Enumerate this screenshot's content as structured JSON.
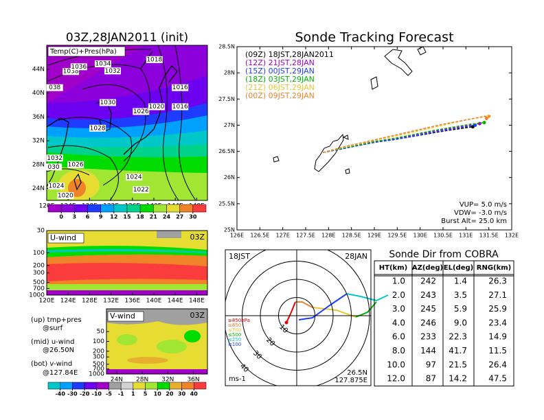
{
  "chart_data": [
    {
      "type": "contour",
      "title": "03Z,28JAN2011 (init)",
      "label": "Temp(C)+Pres(hPa)",
      "xlim": [
        120,
        150
      ],
      "ylim": [
        22,
        48
      ],
      "xticks": [
        {
          "value": 120,
          "label": "120E"
        },
        {
          "value": 124,
          "label": "124E"
        },
        {
          "value": 128,
          "label": "128E"
        },
        {
          "value": 132,
          "label": "132E"
        },
        {
          "value": 136,
          "label": "136E"
        },
        {
          "value": 140,
          "label": "140E"
        },
        {
          "value": 144,
          "label": "144E"
        },
        {
          "value": 148,
          "label": "148E"
        }
      ],
      "yticks": [
        {
          "value": 24,
          "label": "24N"
        },
        {
          "value": 28,
          "label": "28N"
        },
        {
          "value": 32,
          "label": "32N"
        },
        {
          "value": 36,
          "label": "36N"
        },
        {
          "value": 40,
          "label": "40N"
        },
        {
          "value": 44,
          "label": "44N"
        }
      ],
      "contour_labels": [
        {
          "value": 1038,
          "lon": 124.5,
          "lat": 43.6
        },
        {
          "value": 1036,
          "lon": 126.0,
          "lat": 44.4
        },
        {
          "value": 1034,
          "lon": 130.5,
          "lat": 44.9
        },
        {
          "value": 1032,
          "lon": 132.3,
          "lat": 43.7
        },
        {
          "value": 1018,
          "lon": 140.1,
          "lat": 45.6
        },
        {
          "value": 1038,
          "label": "038",
          "lon": 121.5,
          "lat": 40.9
        },
        {
          "value": 1030,
          "lon": 131.4,
          "lat": 38.4
        },
        {
          "value": 1016,
          "lon": 144.9,
          "lat": 40.9
        },
        {
          "value": 1020,
          "lon": 140.5,
          "lat": 37.7
        },
        {
          "value": 1026,
          "lon": 137.6,
          "lat": 36.9
        },
        {
          "value": 1016,
          "lon": 144.9,
          "lat": 37.7
        },
        {
          "value": 1028,
          "lon": 129.5,
          "lat": 34.1
        },
        {
          "value": 1032,
          "lon": 121.5,
          "lat": 29.1
        },
        {
          "value": 1026,
          "lon": 125.4,
          "lat": 28.0
        },
        {
          "value": 1030,
          "label": "030",
          "lon": 121.3,
          "lat": 27.6
        },
        {
          "value": 1024,
          "lon": 136.3,
          "lat": 25.9
        },
        {
          "value": 1022,
          "lon": 137.6,
          "lat": 23.8
        },
        {
          "value": 1024,
          "lon": 121.8,
          "lat": 24.4
        },
        {
          "value": 1020,
          "lon": 123.5,
          "lat": 22.8
        }
      ],
      "colorbar": {
        "ticks": [
          0,
          3,
          6,
          9,
          12,
          15,
          18,
          21,
          24,
          27,
          30
        ],
        "colors": [
          "#a000c8",
          "#8c00dc",
          "#6e00f0",
          "#1e3cff",
          "#00a0ff",
          "#00c8c8",
          "#00d28c",
          "#00dc00",
          "#a0e632",
          "#e6dc32",
          "#f08228",
          "#fa3c3c"
        ]
      }
    },
    {
      "type": "section",
      "label": "U-wind",
      "time": "03Z",
      "log": true,
      "xlim": [
        120,
        150
      ],
      "ylim": [
        1000,
        30
      ],
      "xticks": [
        {
          "value": 120,
          "label": "120E"
        },
        {
          "value": 124,
          "label": "124E"
        },
        {
          "value": 128,
          "label": "128E"
        },
        {
          "value": 132,
          "label": "132E"
        },
        {
          "value": 136,
          "label": "136E"
        },
        {
          "value": 140,
          "label": "140E"
        },
        {
          "value": 144,
          "label": "144E"
        },
        {
          "value": 148,
          "label": "148E"
        }
      ],
      "yticks": [
        30,
        100,
        200,
        300,
        500,
        700,
        1000
      ]
    },
    {
      "type": "section",
      "label": "V-wind",
      "time": "03Z",
      "log": true,
      "xlim": [
        22.4,
        38.2
      ],
      "ylim": [
        1000,
        10
      ],
      "xticks": [
        {
          "value": 24,
          "label": "24N"
        },
        {
          "value": 28,
          "label": "28N"
        },
        {
          "value": 32,
          "label": "32N"
        },
        {
          "value": 36,
          "label": "36N"
        }
      ],
      "yticks": [
        50,
        100,
        200,
        300,
        500,
        700,
        1000
      ],
      "colorbar": {
        "ticks": [
          -40,
          -30,
          -20,
          -10,
          -5,
          -1,
          1,
          5,
          10,
          20,
          30,
          40
        ],
        "colors": [
          "#00c8c8",
          "#00a0ff",
          "#1e3cff",
          "#6e00f0",
          "#a000c8",
          "#a0a0a0",
          "#d2d2d2",
          "#e6dc32",
          "#a0e632",
          "#00dc00",
          "#e6af2d",
          "#f08228",
          "#fa3c3c"
        ]
      }
    },
    {
      "type": "line",
      "title": "Sonde Tracking Forecast",
      "xlim": [
        126,
        132
      ],
      "ylim": [
        25,
        28.5
      ],
      "xticks": [
        {
          "value": 126,
          "label": "126E"
        },
        {
          "value": 126.5,
          "label": "126.5E"
        },
        {
          "value": 127,
          "label": "127E"
        },
        {
          "value": 127.5,
          "label": "127.5E"
        },
        {
          "value": 128,
          "label": "128E"
        },
        {
          "value": 128.5,
          "label": "128.5E"
        },
        {
          "value": 129,
          "label": "129E"
        },
        {
          "value": 129.5,
          "label": "129.5E"
        },
        {
          "value": 130,
          "label": "130E"
        },
        {
          "value": 130.5,
          "label": "130.5E"
        },
        {
          "value": 131,
          "label": "131E"
        },
        {
          "value": 131.5,
          "label": "131.5E"
        },
        {
          "value": 132,
          "label": "132E"
        }
      ],
      "yticks": [
        {
          "value": 25,
          "label": "25N"
        },
        {
          "value": 25.5,
          "label": "25.5N"
        },
        {
          "value": 26,
          "label": "26N"
        },
        {
          "value": 26.5,
          "label": "26.5N"
        },
        {
          "value": 27,
          "label": "27N"
        },
        {
          "value": 27.5,
          "label": "27.5N"
        },
        {
          "value": 28,
          "label": "28N"
        },
        {
          "value": 28.5,
          "label": "28.5N"
        }
      ],
      "series": [
        {
          "name": "(09Z)  18JST,28JAN2011",
          "color": "#000000",
          "x": [
            127.88,
            128.3,
            128.7,
            129.0,
            129.4,
            129.8,
            130.2,
            130.6,
            131.0,
            131.15
          ],
          "values": [
            26.48,
            26.55,
            26.62,
            26.68,
            26.72,
            26.78,
            26.84,
            26.9,
            26.95,
            26.97
          ]
        },
        {
          "name": "(12Z)  21JST,28JAN",
          "color": "#a000c8",
          "x": [
            127.88,
            128.3,
            128.7,
            129.0,
            129.4,
            129.8,
            130.2,
            130.6,
            131.0,
            131.3
          ],
          "values": [
            26.48,
            26.56,
            26.63,
            26.69,
            26.74,
            26.8,
            26.87,
            26.93,
            26.99,
            27.03
          ]
        },
        {
          "name": "(15Z)  00JST,29JAN",
          "color": "#1e3cff",
          "x": [
            127.88,
            128.3,
            128.7,
            129.0,
            129.4,
            129.8,
            130.2,
            130.6,
            131.0,
            131.2
          ],
          "values": [
            26.48,
            26.55,
            26.62,
            26.67,
            26.72,
            26.78,
            26.85,
            26.91,
            26.97,
            27.0
          ]
        },
        {
          "name": "(18Z)  03JST,29JAN",
          "color": "#00b400",
          "x": [
            127.88,
            128.3,
            128.7,
            129.1,
            129.5,
            129.9,
            130.3,
            130.7,
            131.1,
            131.4
          ],
          "values": [
            26.48,
            26.56,
            26.63,
            26.7,
            26.76,
            26.83,
            26.9,
            26.96,
            27.02,
            27.05
          ]
        },
        {
          "name": "(21Z)  06JST,29JAN",
          "color": "#e6c832",
          "x": [
            127.88,
            128.3,
            128.7,
            129.1,
            129.5,
            129.9,
            130.3,
            130.7,
            131.1,
            131.5
          ],
          "values": [
            26.48,
            26.57,
            26.65,
            26.73,
            26.8,
            26.88,
            26.96,
            27.04,
            27.12,
            27.17
          ]
        },
        {
          "name": "(00Z)  09JST,29JAN",
          "color": "#f08228",
          "x": [
            127.88,
            128.3,
            128.7,
            129.1,
            129.5,
            130.0,
            130.5,
            131.0,
            131.4,
            131.55,
            131.45
          ],
          "values": [
            26.48,
            26.58,
            26.66,
            26.74,
            26.82,
            26.92,
            27.02,
            27.1,
            27.17,
            27.18,
            27.13
          ]
        }
      ],
      "annotations": [
        "VUP=  5.0  m/s",
        "VDW= -3.0  m/s",
        "Burst Alt= 25.0  km"
      ]
    },
    {
      "type": "polar",
      "time": "18JST",
      "date": "28JAN",
      "lat": "26.5N",
      "lon": "127.875E",
      "unit": "ms-1",
      "rings": [
        10,
        20,
        30,
        40
      ],
      "legend": [
        {
          "label": "≥850hPa",
          "color": "#e00000"
        },
        {
          "label": "≤850",
          "color": "#f08228"
        },
        {
          "label": "≤700",
          "color": "#e6c832"
        },
        {
          "label": "≤500",
          "color": "#00b400"
        },
        {
          "label": "≤250",
          "color": "#00c8c8"
        },
        {
          "label": "≤100",
          "color": "#1e3cff"
        }
      ]
    }
  ],
  "notes": [
    "(up) tmp+pres",
    "@surf",
    "(mid) u-wind",
    "@26.50N",
    "(bot) v-wind",
    "@127.84E"
  ],
  "table": {
    "title": "Sonde Dir from COBRA",
    "header": [
      "HT(km)",
      "AZ(deg)",
      "EL(deg)",
      "RNG(km)"
    ],
    "rows": [
      [
        "1.0",
        "242",
        "1.4",
        "26.3"
      ],
      [
        "2.0",
        "243",
        "3.5",
        "27.1"
      ],
      [
        "3.0",
        "245",
        "5.9",
        "25.9"
      ],
      [
        "4.0",
        "246",
        "9.0",
        "23.4"
      ],
      [
        "6.0",
        "233",
        "22.3",
        "14.9"
      ],
      [
        "8.0",
        "144",
        "41.7",
        "11.5"
      ],
      [
        "10.0",
        "97",
        "21.5",
        "26.4"
      ],
      [
        "12.0",
        "87",
        "14.2",
        "47.5"
      ]
    ]
  }
}
